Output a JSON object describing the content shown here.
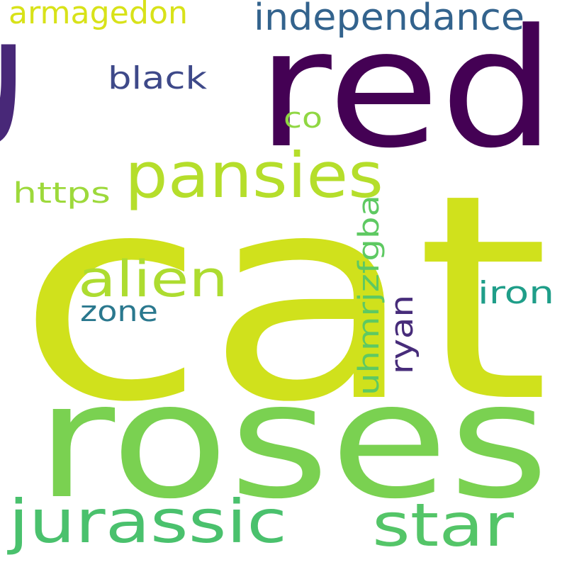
{
  "words": [
    {
      "text": "cat",
      "color": "#d0e11c"
    },
    {
      "text": "roses",
      "color": "#7ad151"
    },
    {
      "text": "red",
      "color": "#440154"
    },
    {
      "text": "t",
      "color": "#482878"
    },
    {
      "text": "pansies",
      "color": "#b5de2b"
    },
    {
      "text": "jurassic",
      "color": "#4ac16d"
    },
    {
      "text": "star",
      "color": "#54c568"
    },
    {
      "text": "independance",
      "color": "#33638d"
    },
    {
      "text": "alien",
      "color": "#addc30"
    },
    {
      "text": "armagedon",
      "color": "#d8e219"
    },
    {
      "text": "black",
      "color": "#3e4989"
    },
    {
      "text": "uhmrjzfgba",
      "color": "#5ec962"
    },
    {
      "text": "ryan",
      "color": "#472c7a"
    },
    {
      "text": "https",
      "color": "#9dd93b"
    },
    {
      "text": "iron",
      "color": "#1f9e89"
    },
    {
      "text": "zone",
      "color": "#2a788e"
    },
    {
      "text": "co",
      "color": "#90d743"
    }
  ]
}
